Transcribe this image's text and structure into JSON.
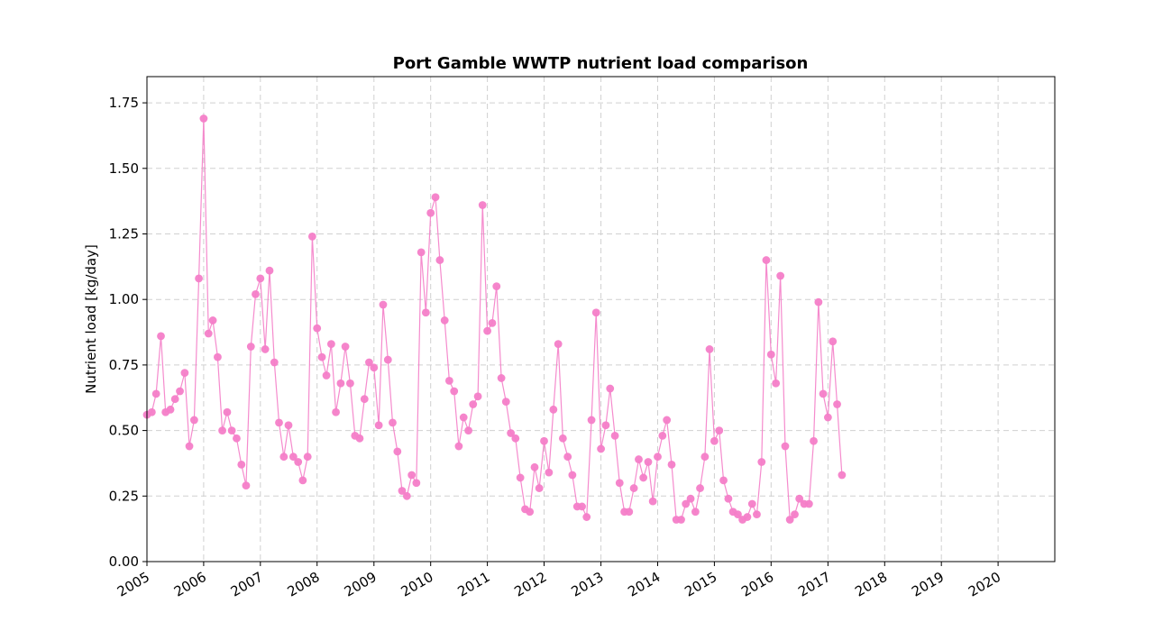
{
  "chart_data": {
    "type": "line",
    "title": "Port Gamble WWTP nutrient load comparison",
    "xlabel": "",
    "ylabel": "Nutrient load [kg/day]",
    "xlim": [
      "2005-01-01",
      "2020-12-31"
    ],
    "ylim": [
      0,
      1.85
    ],
    "x_ticks": [
      "2005",
      "2006",
      "2007",
      "2008",
      "2009",
      "2010",
      "2011",
      "2012",
      "2013",
      "2014",
      "2015",
      "2016",
      "2017",
      "2018",
      "2019",
      "2020"
    ],
    "y_ticks": [
      "0.00",
      "0.25",
      "0.50",
      "0.75",
      "1.00",
      "1.25",
      "1.50",
      "1.75"
    ],
    "grid": true,
    "legend": "none",
    "color": "#f47ec8",
    "series": [
      {
        "x": [
          "2005-01",
          "2005-02",
          "2005-03",
          "2005-04",
          "2005-05",
          "2005-06",
          "2005-07",
          "2005-08",
          "2005-09",
          "2005-10",
          "2005-11",
          "2005-12",
          "2006-01",
          "2006-02",
          "2006-03",
          "2006-04",
          "2006-05",
          "2006-06",
          "2006-07",
          "2006-08",
          "2006-09",
          "2006-10",
          "2006-11",
          "2006-12",
          "2007-01",
          "2007-02",
          "2007-03",
          "2007-04",
          "2007-05",
          "2007-06",
          "2007-07",
          "2007-08",
          "2007-09",
          "2007-10",
          "2007-11",
          "2007-12",
          "2008-01",
          "2008-02",
          "2008-03",
          "2008-04",
          "2008-05",
          "2008-06",
          "2008-07",
          "2008-08",
          "2008-09",
          "2008-10",
          "2008-11",
          "2008-12",
          "2009-01",
          "2009-02",
          "2009-03",
          "2009-04",
          "2009-05",
          "2009-06",
          "2009-07",
          "2009-08",
          "2009-09",
          "2009-10",
          "2009-11",
          "2009-12",
          "2010-01",
          "2010-02",
          "2010-03",
          "2010-04",
          "2010-05",
          "2010-06",
          "2010-07",
          "2010-08",
          "2010-09",
          "2010-10",
          "2010-11",
          "2010-12",
          "2011-01",
          "2011-02",
          "2011-03",
          "2011-04",
          "2011-05",
          "2011-06",
          "2011-07",
          "2011-08",
          "2011-09",
          "2011-10",
          "2011-11",
          "2011-12",
          "2012-01",
          "2012-02",
          "2012-03",
          "2012-04",
          "2012-05",
          "2012-06",
          "2012-07",
          "2012-08",
          "2012-09",
          "2012-10",
          "2012-11",
          "2012-12",
          "2013-01",
          "2013-02",
          "2013-03",
          "2013-04",
          "2013-05",
          "2013-06",
          "2013-07",
          "2013-08",
          "2013-09",
          "2013-10",
          "2013-11",
          "2013-12",
          "2014-01",
          "2014-02",
          "2014-03",
          "2014-04",
          "2014-05",
          "2014-06",
          "2014-07",
          "2014-08",
          "2014-09",
          "2014-10",
          "2014-11",
          "2014-12",
          "2015-01",
          "2015-02",
          "2015-03",
          "2015-04",
          "2015-05",
          "2015-06",
          "2015-07",
          "2015-08",
          "2015-09",
          "2015-10",
          "2015-11",
          "2015-12",
          "2016-01",
          "2016-02",
          "2016-03",
          "2016-04",
          "2016-05",
          "2016-06",
          "2016-07",
          "2016-08",
          "2016-09",
          "2016-10",
          "2016-11",
          "2016-12",
          "2017-01",
          "2017-02",
          "2017-03",
          "2017-04"
        ],
        "values": [
          0.56,
          0.57,
          0.64,
          0.86,
          0.57,
          0.58,
          0.62,
          0.65,
          0.72,
          0.44,
          0.54,
          1.08,
          1.69,
          0.87,
          0.92,
          0.78,
          0.5,
          0.57,
          0.5,
          0.47,
          0.37,
          0.29,
          0.82,
          1.02,
          1.08,
          0.81,
          1.11,
          0.76,
          0.53,
          0.4,
          0.52,
          0.4,
          0.38,
          0.31,
          0.4,
          1.24,
          0.89,
          0.78,
          0.71,
          0.83,
          0.57,
          0.68,
          0.82,
          0.68,
          0.48,
          0.47,
          0.62,
          0.76,
          0.74,
          0.52,
          0.98,
          0.77,
          0.53,
          0.42,
          0.27,
          0.25,
          0.33,
          0.3,
          1.18,
          0.95,
          1.33,
          1.39,
          1.15,
          0.92,
          0.69,
          0.65,
          0.44,
          0.55,
          0.5,
          0.6,
          0.63,
          1.36,
          0.88,
          0.91,
          1.05,
          0.7,
          0.61,
          0.49,
          0.47,
          0.32,
          0.2,
          0.19,
          0.36,
          0.28,
          0.46,
          0.34,
          0.58,
          0.83,
          0.47,
          0.4,
          0.33,
          0.21,
          0.21,
          0.17,
          0.54,
          0.95,
          0.43,
          0.52,
          0.66,
          0.48,
          0.3,
          0.19,
          0.19,
          0.28,
          0.39,
          0.32,
          0.38,
          0.23,
          0.4,
          0.48,
          0.54,
          0.37,
          0.16,
          0.16,
          0.22,
          0.24,
          0.19,
          0.28,
          0.4,
          0.81,
          0.46,
          0.5,
          0.31,
          0.24,
          0.19,
          0.18,
          0.16,
          0.17,
          0.22,
          0.18,
          0.38,
          1.15,
          0.79,
          0.68,
          1.09,
          0.44,
          0.16,
          0.18,
          0.24,
          0.22,
          0.22,
          0.46,
          0.99,
          0.64,
          0.55,
          0.84,
          0.6,
          0.33
        ]
      }
    ]
  }
}
